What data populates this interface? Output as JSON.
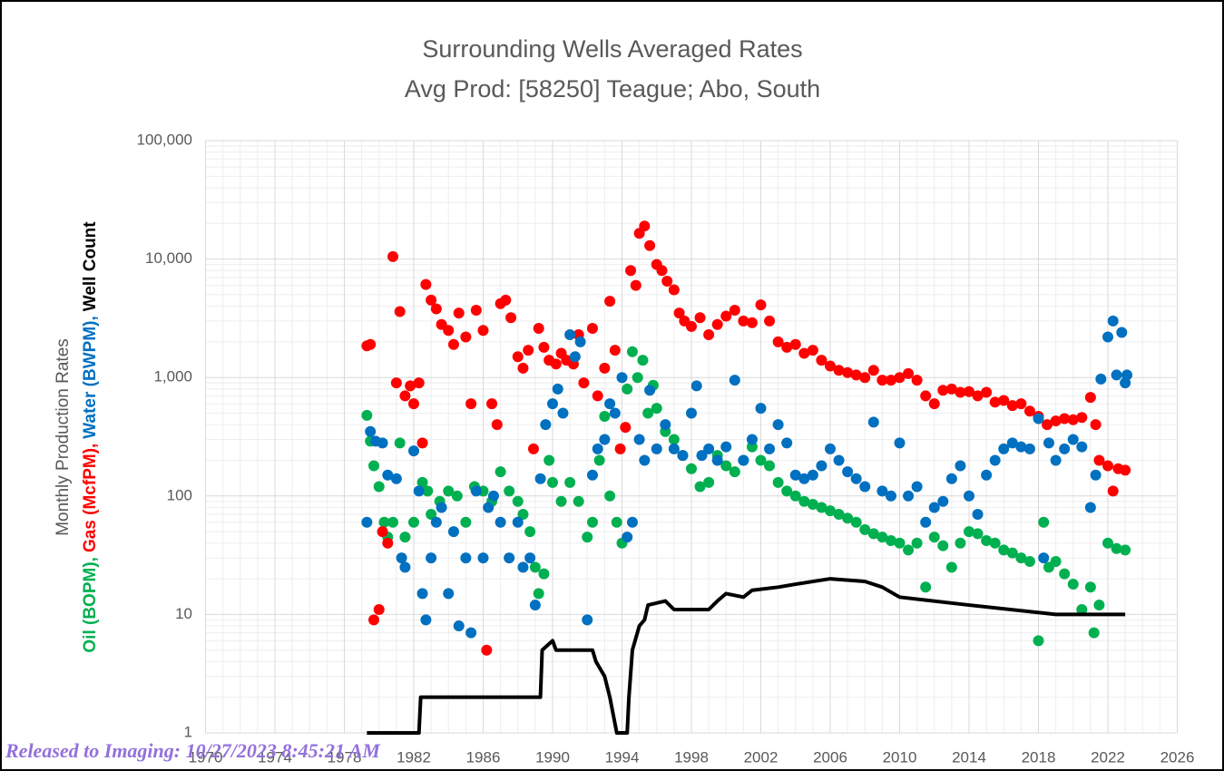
{
  "chart_data": {
    "type": "scatter",
    "title": "Surrounding Wells Averaged Rates",
    "subtitle": "Avg Prod: [58250] Teague; Abo, South",
    "y_label": "Monthly Production Rates",
    "watermark": "Released to Imaging: 10/27/2023 8:45:21 AM",
    "log_y": true,
    "grid": true,
    "minor_grid": true,
    "xlim": [
      1970,
      2026
    ],
    "xticks": [
      1970,
      1974,
      1978,
      1982,
      1986,
      1990,
      1994,
      1998,
      2002,
      2006,
      2010,
      2014,
      2018,
      2022,
      2026
    ],
    "ylim": [
      1,
      100000
    ],
    "yticks": [
      1,
      10,
      100,
      {
        "value": 1000,
        "label": "1,000"
      },
      {
        "value": 10000,
        "label": "10,000"
      },
      {
        "value": 100000,
        "label": "100,000"
      }
    ],
    "series": [
      {
        "name": "Oil (BOPM),",
        "color": "#00b050",
        "type": "scatter",
        "x": [
          1979.3,
          1979.5,
          1979.7,
          1980,
          1980.3,
          1980.5,
          1980.8,
          1981.2,
          1981.5,
          1982,
          1982.5,
          1982.8,
          1983,
          1983.5,
          1984,
          1984.5,
          1985,
          1985.5,
          1986,
          1986.5,
          1987,
          1987.5,
          1988,
          1988.3,
          1988.7,
          1989,
          1989.2,
          1989.5,
          1989.8,
          1990,
          1990.5,
          1991,
          1991.5,
          1992,
          1992.3,
          1992.7,
          1993,
          1993.3,
          1993.7,
          1994,
          1994.3,
          1994.6,
          1994.9,
          1995.2,
          1995.5,
          1995.8,
          1996,
          1996.5,
          1997,
          1997.5,
          1998,
          1998.5,
          1999,
          1999.5,
          2000,
          2000.5,
          2001,
          2001.5,
          2002,
          2002.5,
          2003,
          2003.5,
          2004,
          2004.5,
          2005,
          2005.5,
          2006,
          2006.5,
          2007,
          2007.5,
          2008,
          2008.5,
          2009,
          2009.5,
          2010,
          2010.5,
          2011,
          2011.5,
          2012,
          2012.5,
          2013,
          2013.5,
          2014,
          2014.5,
          2015,
          2015.5,
          2016,
          2016.5,
          2017,
          2017.5,
          2018,
          2018.3,
          2018.6,
          2019,
          2019.5,
          2020,
          2020.5,
          2021,
          2021.2,
          2021.5,
          2022,
          2022.5,
          2023
        ],
        "values": [
          480,
          290,
          180,
          120,
          60,
          45,
          60,
          280,
          45,
          60,
          130,
          110,
          70,
          90,
          110,
          100,
          60,
          120,
          110,
          90,
          160,
          110,
          90,
          70,
          50,
          25,
          15,
          22,
          200,
          130,
          90,
          130,
          90,
          45,
          60,
          200,
          470,
          100,
          60,
          40,
          800,
          1650,
          1000,
          1400,
          500,
          860,
          550,
          350,
          300,
          220,
          170,
          120,
          130,
          220,
          180,
          160,
          200,
          260,
          200,
          180,
          130,
          110,
          100,
          90,
          85,
          80,
          75,
          70,
          65,
          60,
          52,
          48,
          45,
          42,
          40,
          35,
          40,
          17,
          45,
          38,
          25,
          40,
          50,
          48,
          42,
          40,
          35,
          33,
          30,
          28,
          6,
          60,
          25,
          28,
          22,
          18,
          11,
          17,
          7,
          12,
          40,
          36,
          35
        ]
      },
      {
        "name": "Gas (McfPM),",
        "color": "#ff0000",
        "type": "scatter",
        "x": [
          1979.3,
          1979.5,
          1979.7,
          1980,
          1980.2,
          1980.5,
          1980.8,
          1981,
          1981.2,
          1981.5,
          1981.8,
          1982,
          1982.3,
          1982.5,
          1982.7,
          1983,
          1983.3,
          1983.6,
          1984,
          1984.3,
          1984.6,
          1985,
          1985.3,
          1985.6,
          1986,
          1986.2,
          1986.5,
          1986.8,
          1987,
          1987.3,
          1987.6,
          1988,
          1988.3,
          1988.6,
          1988.9,
          1989.2,
          1989.5,
          1989.8,
          1990.2,
          1990.5,
          1990.8,
          1991.2,
          1991.5,
          1991.8,
          1992.3,
          1992.6,
          1993,
          1993.3,
          1993.6,
          1993.9,
          1994.2,
          1994.5,
          1994.8,
          1995,
          1995.3,
          1995.6,
          1996,
          1996.3,
          1996.6,
          1997,
          1997.3,
          1997.6,
          1998,
          1998.5,
          1999,
          1999.5,
          2000,
          2000.5,
          2001,
          2001.5,
          2002,
          2002.5,
          2003,
          2003.5,
          2004,
          2004.5,
          2005,
          2005.5,
          2006,
          2006.5,
          2007,
          2007.5,
          2008,
          2008.5,
          2009,
          2009.5,
          2010,
          2010.5,
          2011,
          2011.5,
          2012,
          2012.5,
          2013,
          2013.5,
          2014,
          2014.5,
          2015,
          2015.5,
          2016,
          2016.5,
          2017,
          2017.5,
          2018,
          2018.5,
          2019,
          2019.5,
          2020,
          2020.5,
          2021,
          2021.3,
          2021.5,
          2022,
          2022.3,
          2022.6,
          2023
        ],
        "values": [
          1850,
          1900,
          9,
          11,
          50,
          40,
          10500,
          900,
          3600,
          700,
          850,
          600,
          900,
          280,
          6100,
          4500,
          3800,
          2800,
          2500,
          1900,
          3500,
          2200,
          600,
          3700,
          2500,
          5,
          600,
          400,
          4200,
          4500,
          3200,
          1500,
          1200,
          1700,
          250,
          2600,
          1800,
          1400,
          1300,
          1600,
          1400,
          1300,
          2300,
          900,
          2600,
          700,
          1200,
          4400,
          1700,
          250,
          380,
          8000,
          6000,
          16500,
          19000,
          13000,
          9000,
          8000,
          6500,
          5500,
          3500,
          3000,
          2700,
          3200,
          2300,
          2800,
          3300,
          3700,
          3000,
          2900,
          4100,
          3000,
          2000,
          1800,
          1900,
          1600,
          1700,
          1400,
          1250,
          1150,
          1100,
          1050,
          1000,
          1150,
          950,
          950,
          1000,
          1080,
          950,
          700,
          600,
          780,
          800,
          750,
          760,
          700,
          750,
          620,
          640,
          580,
          600,
          520,
          470,
          400,
          430,
          450,
          440,
          460,
          680,
          400,
          200,
          180,
          110,
          170,
          165
        ]
      },
      {
        "name": "Water (BWPM),",
        "color": "#0070c0",
        "type": "scatter",
        "x": [
          1979.3,
          1979.5,
          1979.8,
          1980.2,
          1980.5,
          1981,
          1981.3,
          1981.5,
          1982,
          1982.3,
          1982.5,
          1982.7,
          1983,
          1983.3,
          1983.6,
          1984,
          1984.3,
          1984.6,
          1985,
          1985.3,
          1985.6,
          1986,
          1986.3,
          1986.6,
          1987,
          1987.5,
          1988,
          1988.3,
          1988.7,
          1989,
          1989.3,
          1989.6,
          1990,
          1990.3,
          1990.6,
          1991,
          1991.3,
          1991.6,
          1992,
          1992.3,
          1992.6,
          1993,
          1993.3,
          1993.6,
          1994,
          1994.3,
          1994.6,
          1995,
          1995.3,
          1995.6,
          1996,
          1996.5,
          1997,
          1997.5,
          1998,
          1998.3,
          1998.6,
          1999,
          1999.5,
          2000,
          2000.5,
          2001,
          2001.5,
          2002,
          2002.5,
          2003,
          2003.5,
          2004,
          2004.5,
          2005,
          2005.5,
          2006,
          2006.5,
          2007,
          2007.5,
          2008,
          2008.5,
          2009,
          2009.5,
          2010,
          2010.5,
          2011,
          2011.5,
          2012,
          2012.5,
          2013,
          2013.5,
          2014,
          2014.5,
          2015,
          2015.5,
          2016,
          2016.5,
          2017,
          2017.5,
          2018,
          2018.3,
          2018.6,
          2019,
          2019.5,
          2020,
          2020.5,
          2021,
          2021.3,
          2021.6,
          2022,
          2022.3,
          2022.5,
          2022.8,
          2023,
          2023.1
        ],
        "values": [
          60,
          350,
          290,
          280,
          150,
          140,
          30,
          25,
          240,
          110,
          15,
          9,
          30,
          60,
          80,
          15,
          50,
          8,
          30,
          7,
          110,
          30,
          80,
          100,
          60,
          30,
          60,
          25,
          30,
          12,
          140,
          400,
          600,
          800,
          500,
          2300,
          1500,
          2000,
          9,
          150,
          250,
          300,
          600,
          500,
          1000,
          45,
          60,
          300,
          200,
          780,
          250,
          400,
          250,
          220,
          500,
          850,
          220,
          250,
          200,
          260,
          950,
          200,
          300,
          550,
          250,
          400,
          280,
          150,
          140,
          150,
          180,
          250,
          200,
          160,
          140,
          120,
          420,
          110,
          100,
          280,
          100,
          120,
          60,
          80,
          90,
          140,
          180,
          100,
          70,
          150,
          200,
          250,
          280,
          260,
          250,
          450,
          30,
          280,
          200,
          250,
          300,
          260,
          80,
          150,
          970,
          2200,
          3000,
          1050,
          2400,
          900,
          1050
        ]
      },
      {
        "name": "Well Count",
        "color": "#000000",
        "type": "line",
        "x": [
          1979.3,
          1982.3,
          1982.4,
          1989.3,
          1989.4,
          1990,
          1990.2,
          1992.3,
          1992.5,
          1993,
          1993.3,
          1993.7,
          1994.3,
          1994.4,
          1994.6,
          1995,
          1995.3,
          1995.5,
          1996.5,
          1997,
          1999,
          1999.5,
          2000,
          2001,
          2001.5,
          2003,
          2004,
          2006,
          2008,
          2009,
          2010,
          2014,
          2019,
          2023
        ],
        "values": [
          1,
          1,
          2,
          2,
          5,
          6,
          5,
          5,
          4,
          3,
          2,
          1,
          1,
          2,
          5,
          8,
          9,
          12,
          13,
          11,
          11,
          13,
          15,
          14,
          16,
          17,
          18,
          20,
          19,
          17,
          14,
          12,
          10,
          10
        ]
      }
    ]
  }
}
